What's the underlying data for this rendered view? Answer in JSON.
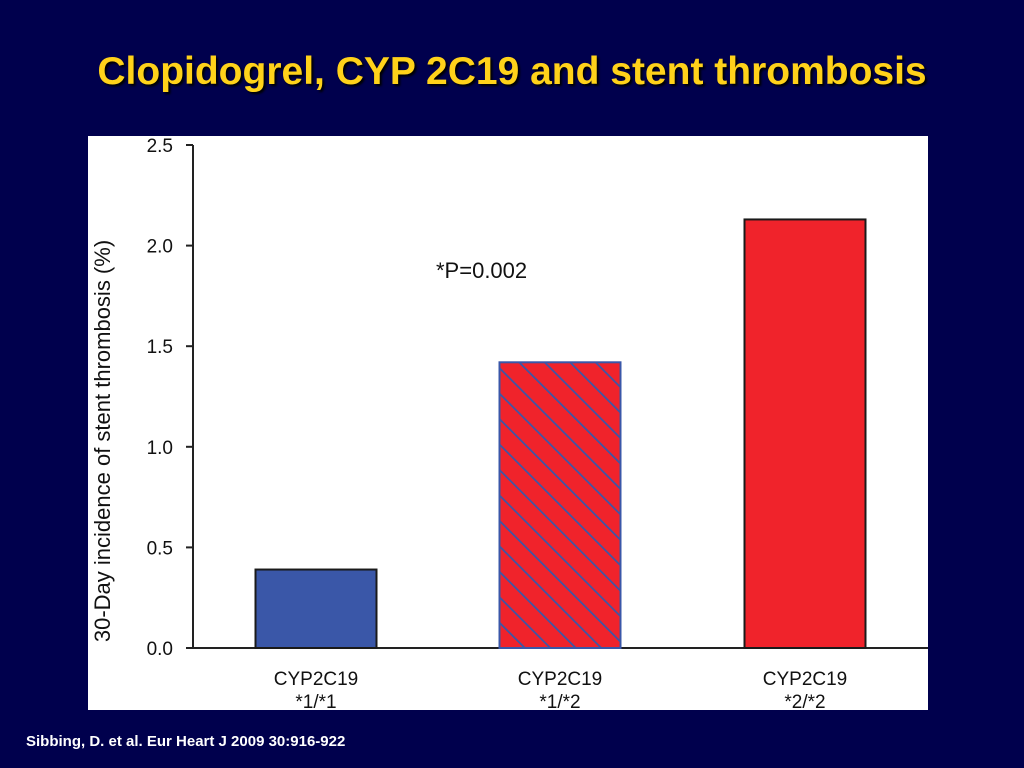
{
  "slide": {
    "title": "Clopidogrel, CYP 2C19 and stent thrombosis",
    "citation": "Sibbing, D. et al. Eur Heart J 2009 30:916-922",
    "background_color": "#00004d",
    "title_color": "#ffd21a"
  },
  "chart_data": {
    "type": "bar",
    "title": "",
    "xlabel": "",
    "ylabel": "30-Day incidence of stent thrombosis (%)",
    "ylim": [
      0,
      2.5
    ],
    "yticks": [
      "0.0",
      "0.5",
      "1.0",
      "1.5",
      "2.0",
      "2.5"
    ],
    "ytick_values": [
      0,
      0.5,
      1.0,
      1.5,
      2.0,
      2.5
    ],
    "categories": [
      {
        "line1": "CYP2C19",
        "line2": "*1/*1"
      },
      {
        "line1": "CYP2C19",
        "line2": "*1/*2"
      },
      {
        "line1": "CYP2C19",
        "line2": "*2/*2"
      }
    ],
    "values": [
      0.39,
      1.42,
      2.13
    ],
    "bar_styles": [
      {
        "fill": "#3a57a8",
        "pattern": "solid"
      },
      {
        "fill": "#f0232b",
        "pattern": "diagonal-hatch",
        "hatch_color": "#3a57a8"
      },
      {
        "fill": "#f0232b",
        "pattern": "solid"
      }
    ],
    "annotation": "*P=0.002",
    "grid": false
  }
}
